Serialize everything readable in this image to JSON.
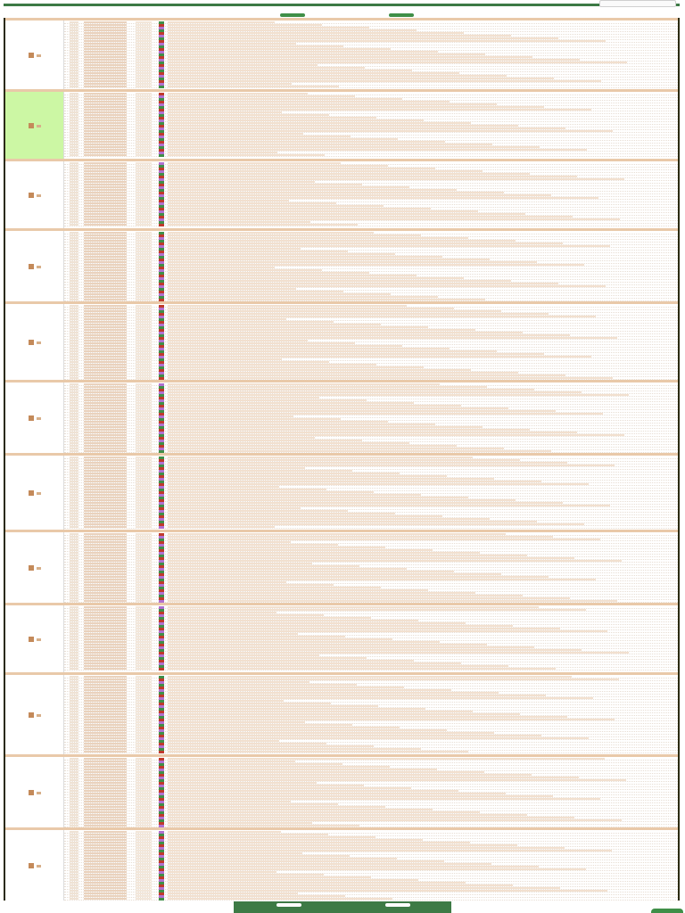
{
  "header": {
    "title": "",
    "search_placeholder": "",
    "nav_label": ""
  },
  "footer": {
    "nav_label": "",
    "text": ""
  },
  "colors": {
    "accent_green": "#3d7a45",
    "separator_beige": "#e9c9a9",
    "selected_day": "#ccf7a4",
    "badge_red": "#c0392b",
    "badge_green": "#3f8f48",
    "badge_purple": "#b070d0"
  },
  "icons": {
    "prev": "arrow-left-icon",
    "next": "arrow-right-icon",
    "day": "calendar-day-icon",
    "page_top": "arrow-up-icon"
  }
}
